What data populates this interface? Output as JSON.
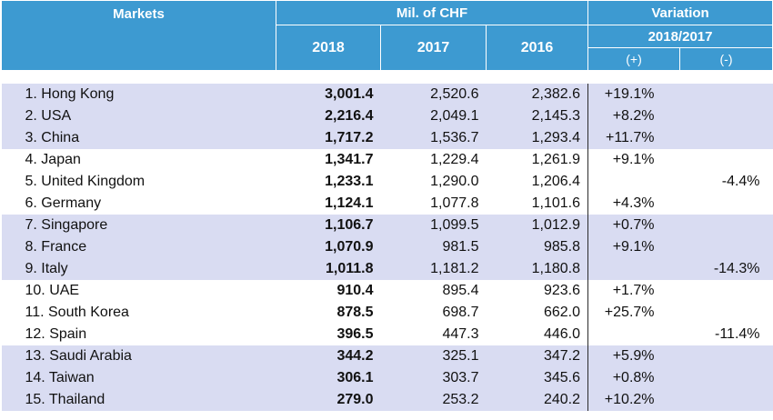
{
  "header": {
    "markets": "Markets",
    "mil_chf": "Mil. of CHF",
    "variation": "Variation",
    "years": [
      "2018",
      "2017",
      "2016"
    ],
    "period": "2018/2017",
    "plus": "(+)",
    "minus": "(-)"
  },
  "rows": [
    {
      "market": "1. Hong Kong",
      "y2018": "3,001.4",
      "y2017": "2,520.6",
      "y2016": "2,382.6",
      "plus": "+19.1%",
      "minus": ""
    },
    {
      "market": "2. USA",
      "y2018": "2,216.4",
      "y2017": "2,049.1",
      "y2016": "2,145.3",
      "plus": "+8.2%",
      "minus": ""
    },
    {
      "market": "3. China",
      "y2018": "1,717.2",
      "y2017": "1,536.7",
      "y2016": "1,293.4",
      "plus": "+11.7%",
      "minus": ""
    },
    {
      "market": "4. Japan",
      "y2018": "1,341.7",
      "y2017": "1,229.4",
      "y2016": "1,261.9",
      "plus": "+9.1%",
      "minus": ""
    },
    {
      "market": "5. United Kingdom",
      "y2018": "1,233.1",
      "y2017": "1,290.0",
      "y2016": "1,206.4",
      "plus": "",
      "minus": "-4.4%"
    },
    {
      "market": "6. Germany",
      "y2018": "1,124.1",
      "y2017": "1,077.8",
      "y2016": "1,101.6",
      "plus": "+4.3%",
      "minus": ""
    },
    {
      "market": "7. Singapore",
      "y2018": "1,106.7",
      "y2017": "1,099.5",
      "y2016": "1,012.9",
      "plus": "+0.7%",
      "minus": ""
    },
    {
      "market": "8. France",
      "y2018": "1,070.9",
      "y2017": "981.5",
      "y2016": "985.8",
      "plus": "+9.1%",
      "minus": ""
    },
    {
      "market": "9. Italy",
      "y2018": "1,011.8",
      "y2017": "1,181.2",
      "y2016": "1,180.8",
      "plus": "",
      "minus": "-14.3%"
    },
    {
      "market": "10. UAE",
      "y2018": "910.4",
      "y2017": "895.4",
      "y2016": "923.6",
      "plus": "+1.7%",
      "minus": ""
    },
    {
      "market": "11. South Korea",
      "y2018": "878.5",
      "y2017": "698.7",
      "y2016": "662.0",
      "plus": "+25.7%",
      "minus": ""
    },
    {
      "market": "12. Spain",
      "y2018": "396.5",
      "y2017": "447.3",
      "y2016": "446.0",
      "plus": "",
      "minus": "-11.4%"
    },
    {
      "market": "13. Saudi Arabia",
      "y2018": "344.2",
      "y2017": "325.1",
      "y2016": "347.2",
      "plus": "+5.9%",
      "minus": ""
    },
    {
      "market": "14. Taiwan",
      "y2018": "306.1",
      "y2017": "303.7",
      "y2016": "345.6",
      "plus": "+0.8%",
      "minus": ""
    },
    {
      "market": "15. Thailand",
      "y2018": "279.0",
      "y2017": "253.2",
      "y2016": "240.2",
      "plus": "+10.2%",
      "minus": ""
    }
  ],
  "colors": {
    "header": "#3d9ad1",
    "band": "#d9dcf2",
    "header_text": "#ffffff"
  }
}
